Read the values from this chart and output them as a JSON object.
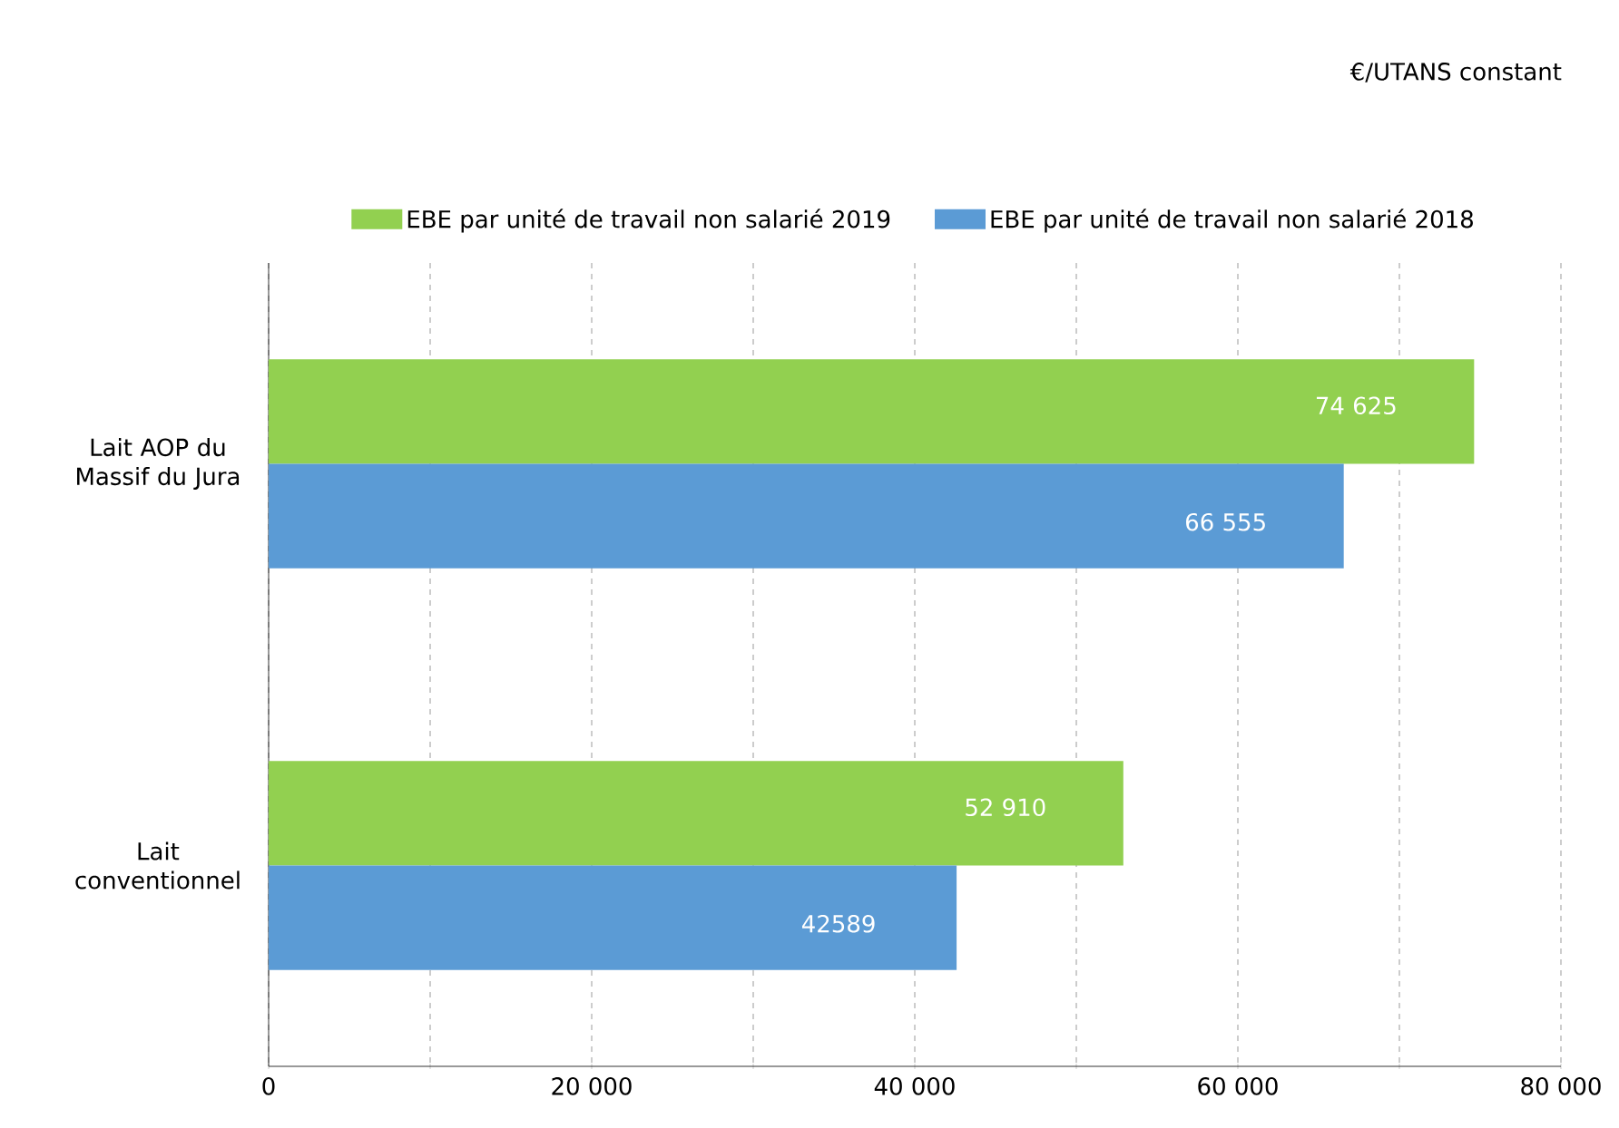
{
  "chart_data": {
    "type": "bar",
    "orientation": "horizontal",
    "categories": [
      "Lait AOP du Massif du Jura",
      "Lait conventionnel"
    ],
    "series": [
      {
        "name": "EBE par unité de travail non salarié 2019",
        "color": "#92d050",
        "values": [
          74625,
          52910
        ],
        "value_labels": [
          "74 625",
          "52 910"
        ]
      },
      {
        "name": "EBE par unité de travail non salarié 2018",
        "color": "#5b9bd5",
        "values": [
          66555,
          42589
        ],
        "value_labels": [
          "66 555",
          "42589"
        ]
      }
    ],
    "xlim": [
      0,
      80000
    ],
    "xticks": [
      0,
      {
        "value": 10000,
        "label": null
      },
      {
        "value": 20000,
        "label": "20 000"
      },
      {
        "value": 30000,
        "label": null
      },
      {
        "value": 40000,
        "label": "40 000"
      },
      {
        "value": 50000,
        "label": null
      },
      {
        "value": 60000,
        "label": "60 000"
      },
      {
        "value": 70000,
        "label": null
      },
      {
        "value": 80000,
        "label": "80 000"
      }
    ],
    "grid": "x",
    "legend": "top",
    "annotations": [
      "€/UTANS constant"
    ]
  }
}
